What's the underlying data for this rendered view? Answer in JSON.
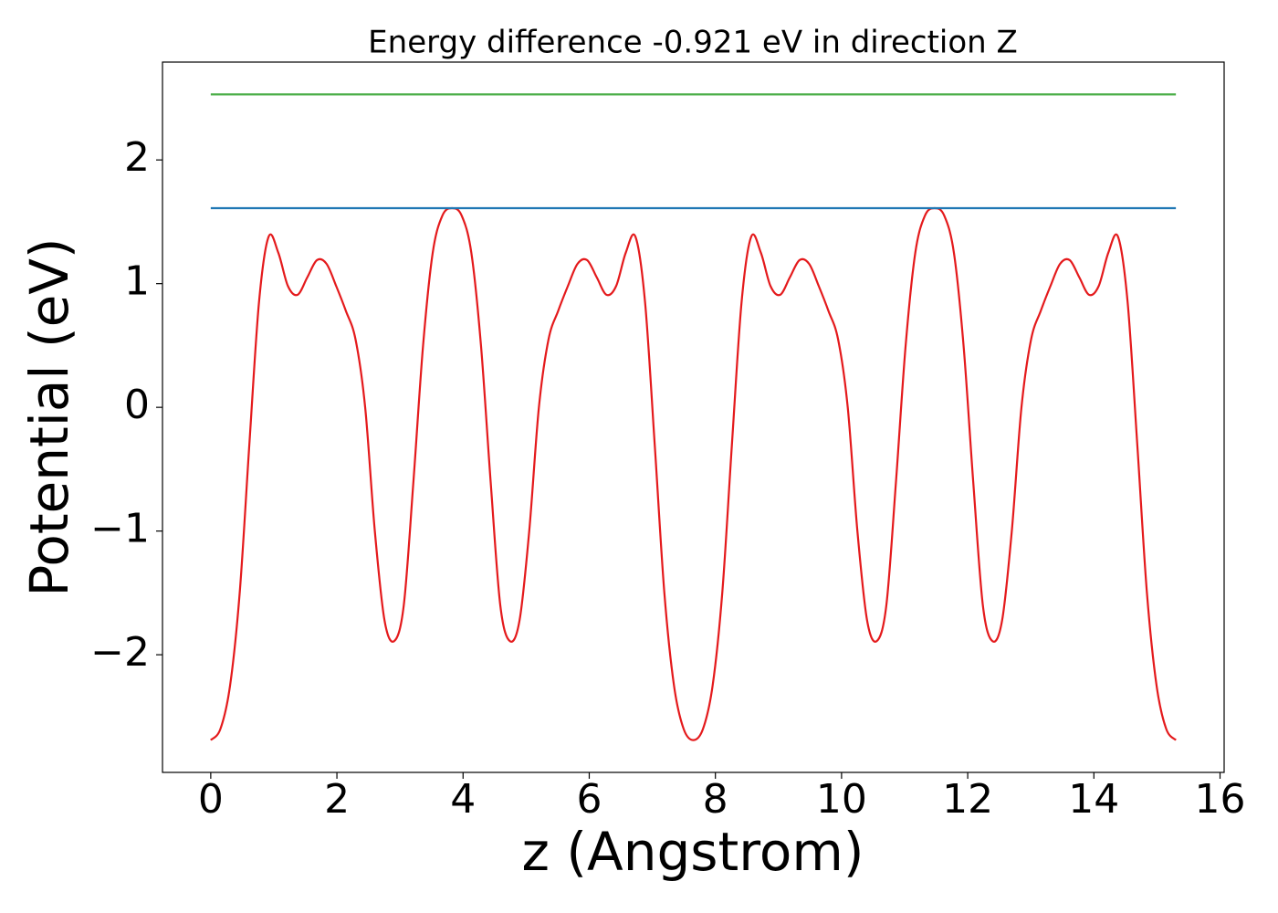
{
  "chart_data": {
    "type": "line",
    "title": "Energy difference -0.921 eV in direction Z",
    "xlabel": "z (Angstrom)",
    "ylabel": "Potential (eV)",
    "xlim": [
      -0.765,
      16.065
    ],
    "ylim": [
      -2.951,
      2.791
    ],
    "xticks": [
      0,
      2,
      4,
      6,
      8,
      10,
      12,
      14,
      16
    ],
    "yticks": [
      {
        "value": -2,
        "label": "−2"
      },
      {
        "value": -1,
        "label": "−1"
      },
      0,
      1,
      2
    ],
    "grid": false,
    "series": [
      {
        "color": "#e41a1c",
        "x": [
          0,
          0.153,
          0.306,
          0.459,
          0.612,
          0.765,
          0.918,
          1.071,
          1.224,
          1.377,
          1.53,
          1.683,
          1.836,
          1.989,
          2.142,
          2.295,
          2.448,
          2.601,
          2.754,
          2.907,
          3.06,
          3.213,
          3.366,
          3.519,
          3.672,
          3.825,
          3.978,
          4.131,
          4.284,
          4.437,
          4.59,
          4.743,
          4.896,
          5.049,
          5.202,
          5.355,
          5.508,
          5.661,
          5.814,
          5.967,
          6.12,
          6.273,
          6.426,
          6.579,
          6.732,
          6.885,
          7.038,
          7.191,
          7.344,
          7.497,
          7.65,
          7.803,
          7.956,
          8.109,
          8.262,
          8.415,
          8.568,
          8.721,
          8.874,
          9.027,
          9.18,
          9.333,
          9.486,
          9.639,
          9.792,
          9.945,
          10.098,
          10.251,
          10.404,
          10.557,
          10.71,
          10.863,
          11.016,
          11.169,
          11.322,
          11.475,
          11.628,
          11.781,
          11.934,
          12.087,
          12.24,
          12.393,
          12.546,
          12.699,
          12.852,
          13.005,
          13.158,
          13.311,
          13.464,
          13.617,
          13.77,
          13.923,
          14.076,
          14.229,
          14.382,
          14.535,
          14.688,
          14.841,
          14.994,
          15.147,
          15.3
        ],
        "values": [
          -2.69,
          -2.6,
          -2.25,
          -1.5,
          -0.3,
          0.85,
          1.38,
          1.25,
          0.98,
          0.91,
          1.05,
          1.19,
          1.16,
          0.98,
          0.78,
          0.55,
          0.0,
          -1.0,
          -1.72,
          -1.89,
          -1.6,
          -0.6,
          0.5,
          1.25,
          1.55,
          1.61,
          1.55,
          1.25,
          0.5,
          -0.6,
          -1.6,
          -1.89,
          -1.72,
          -1.0,
          0.0,
          0.55,
          0.78,
          0.98,
          1.16,
          1.19,
          1.05,
          0.91,
          0.98,
          1.25,
          1.38,
          0.85,
          -0.3,
          -1.5,
          -2.25,
          -2.6,
          -2.69,
          -2.6,
          -2.25,
          -1.5,
          -0.3,
          0.85,
          1.38,
          1.25,
          0.98,
          0.91,
          1.05,
          1.19,
          1.16,
          0.98,
          0.78,
          0.55,
          0.0,
          -1.0,
          -1.72,
          -1.89,
          -1.6,
          -0.6,
          0.5,
          1.25,
          1.55,
          1.61,
          1.55,
          1.25,
          0.5,
          -0.6,
          -1.6,
          -1.89,
          -1.72,
          -1.0,
          0.0,
          0.55,
          0.78,
          0.98,
          1.16,
          1.19,
          1.05,
          0.91,
          0.98,
          1.25,
          1.38,
          0.85,
          -0.3,
          -1.5,
          -2.25,
          -2.6,
          -2.69
        ]
      },
      {
        "color": "#1f77b4",
        "x": [
          0,
          15.3
        ],
        "values": [
          1.61,
          1.61
        ]
      },
      {
        "color": "#4daf4a",
        "x": [
          0,
          15.3
        ],
        "values": [
          2.53,
          2.53
        ]
      }
    ]
  }
}
